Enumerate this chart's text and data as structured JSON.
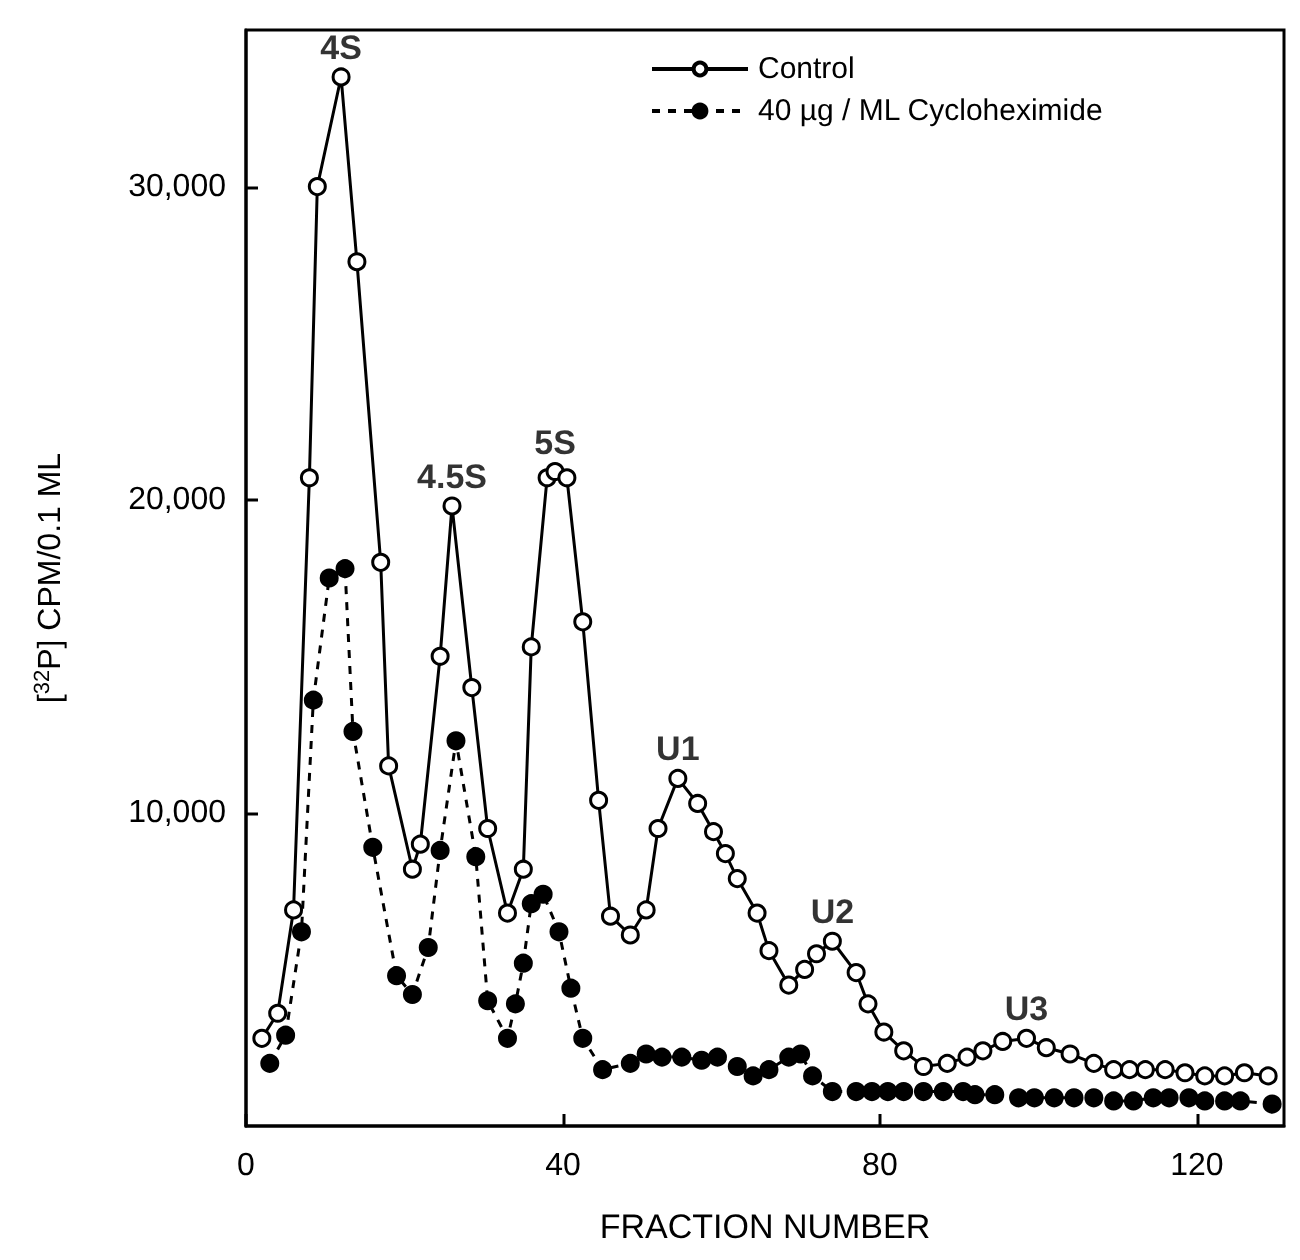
{
  "chart_data": {
    "type": "line",
    "xlabel": "FRACTION NUMBER",
    "ylabel": "[$^{32}$P] CPM/0.1 ML",
    "xlim": [
      0,
      131
    ],
    "xticks": [
      0,
      40,
      80,
      120
    ],
    "ylim": [
      0,
      35000
    ],
    "yticks": [
      {
        "value": 10000,
        "label": "10,000"
      },
      {
        "value": 20000,
        "label": "20,000"
      },
      {
        "value": 30000,
        "label": "30,000"
      }
    ],
    "grid": false,
    "legend": "top right",
    "marker": "circle",
    "series": [
      {
        "name": "Control",
        "color": "#000000",
        "line_style": "solid",
        "x": [
          2,
          4,
          6,
          8,
          9,
          12,
          14,
          17,
          18,
          21,
          22,
          24.5,
          26,
          28.5,
          30.5,
          33,
          35,
          36,
          38,
          39,
          40.5,
          42.5,
          44.5,
          46,
          48.5,
          50.5,
          52,
          54.5,
          57,
          59,
          60.5,
          62,
          64.5,
          66,
          68.5,
          70.5,
          72,
          74,
          77,
          78.5,
          80.5,
          83,
          85.5,
          88.5,
          91,
          93,
          95.5,
          98.5,
          101,
          104,
          107,
          109.5,
          111.5,
          113.5,
          116,
          118.5,
          121,
          123.5,
          126,
          129
        ],
        "values": [
          2800,
          3600,
          6900,
          20700,
          30000,
          33500,
          27600,
          18000,
          11500,
          8200,
          9000,
          15000,
          19800,
          14000,
          9500,
          6800,
          8200,
          15300,
          20700,
          20900,
          20700,
          16100,
          10400,
          6700,
          6100,
          6900,
          9500,
          11100,
          10300,
          9400,
          8700,
          7900,
          6800,
          5600,
          4500,
          5000,
          5500,
          5900,
          4900,
          3900,
          3000,
          2400,
          1900,
          2000,
          2200,
          2400,
          2700,
          2800,
          2500,
          2300,
          2000,
          1800,
          1800,
          1800,
          1800,
          1700,
          1600,
          1600,
          1700,
          1600
        ]
      },
      {
        "name": "40 µg / ML Cycloheximide",
        "color": "#000000",
        "line_style": "dashed",
        "x": [
          3,
          5,
          7,
          8.5,
          10.5,
          12.5,
          13.5,
          16,
          19,
          21,
          23,
          24.5,
          26.5,
          29,
          30.5,
          33,
          34,
          35,
          36,
          37.5,
          39.5,
          41,
          42.5,
          45,
          48.5,
          50.5,
          52.5,
          55,
          57.5,
          59.5,
          62,
          64,
          66,
          68.5,
          70,
          71.5,
          74,
          77,
          79,
          81,
          83,
          85.5,
          88,
          90.5,
          92,
          94.5,
          97.5,
          99.5,
          102,
          104.5,
          107,
          109.5,
          112,
          114.5,
          116.5,
          119,
          121,
          123.5,
          125.5,
          129.5
        ],
        "values": [
          2000,
          2900,
          6200,
          13600,
          17500,
          17800,
          12600,
          8900,
          4800,
          4200,
          5700,
          8800,
          12300,
          8600,
          4000,
          2800,
          3900,
          5200,
          7100,
          7400,
          6200,
          4400,
          2800,
          1800,
          2000,
          2300,
          2200,
          2200,
          2100,
          2200,
          1900,
          1600,
          1800,
          2200,
          2300,
          1600,
          1100,
          1100,
          1100,
          1100,
          1100,
          1100,
          1100,
          1100,
          1000,
          1000,
          900,
          900,
          900,
          900,
          900,
          800,
          800,
          900,
          900,
          900,
          800,
          800,
          800,
          700
        ]
      }
    ],
    "annotations": [
      {
        "text": "4S",
        "x": 12,
        "y": 33500
      },
      {
        "text": "4.5S",
        "x": 26,
        "y": 19800
      },
      {
        "text": "5S",
        "x": 39,
        "y": 20900
      },
      {
        "text": "U1",
        "x": 54.5,
        "y": 11100
      },
      {
        "text": "U2",
        "x": 74,
        "y": 5900
      },
      {
        "text": "U3",
        "x": 98.5,
        "y": 2800
      }
    ]
  }
}
